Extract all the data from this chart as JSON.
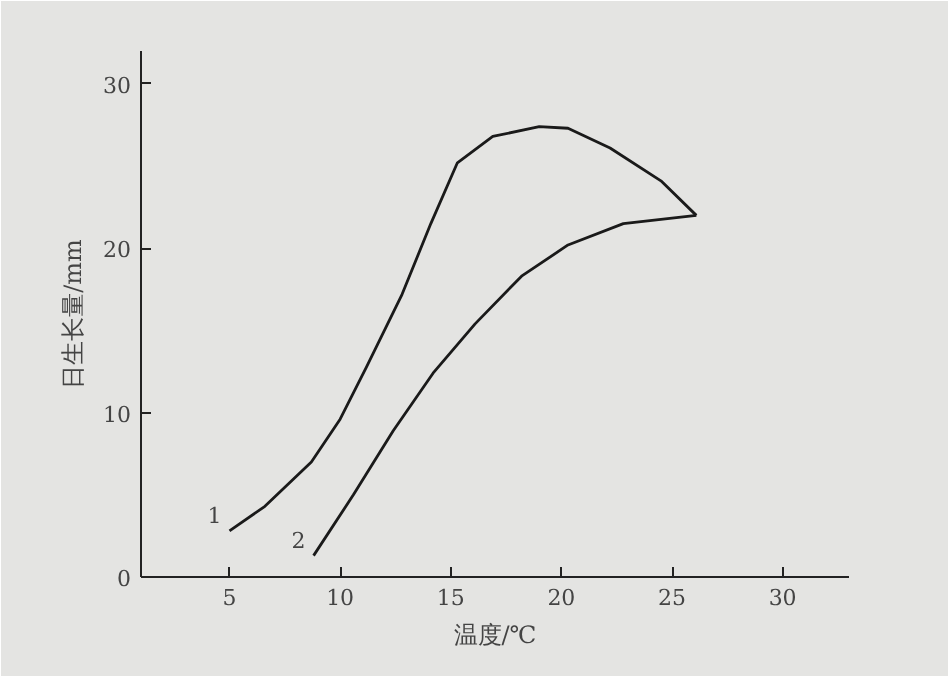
{
  "chart_data": {
    "type": "line",
    "xlabel": "温度/℃",
    "ylabel": "日生长量/mm",
    "series": [
      {
        "name": "1",
        "color": "#1a1a1a",
        "x": [
          5,
          6.6,
          8.7,
          10,
          11.2,
          12.8,
          14.1,
          15.3,
          16.9,
          19.0,
          20.3,
          22.2,
          24.5,
          26.1
        ],
        "values": [
          2.8,
          4.3,
          7.0,
          9.6,
          12.8,
          17.2,
          21.5,
          25.2,
          26.8,
          27.4,
          27.3,
          26.1,
          24.1,
          22.0
        ]
      },
      {
        "name": "2",
        "color": "#1a1a1a",
        "x": [
          8.8,
          10.6,
          12.4,
          14.2,
          16.1,
          18.2,
          20.3,
          22.8,
          26.1
        ],
        "values": [
          1.3,
          5.0,
          8.9,
          12.4,
          15.4,
          18.3,
          20.2,
          21.5,
          22.0
        ]
      }
    ],
    "xlim": [
      1,
      33
    ],
    "ylim": [
      0,
      32
    ],
    "xticks": [
      5,
      10,
      15,
      20,
      25,
      30
    ],
    "yticks": [
      0,
      10,
      20,
      30
    ],
    "marker": "none",
    "line_style": "solid"
  }
}
